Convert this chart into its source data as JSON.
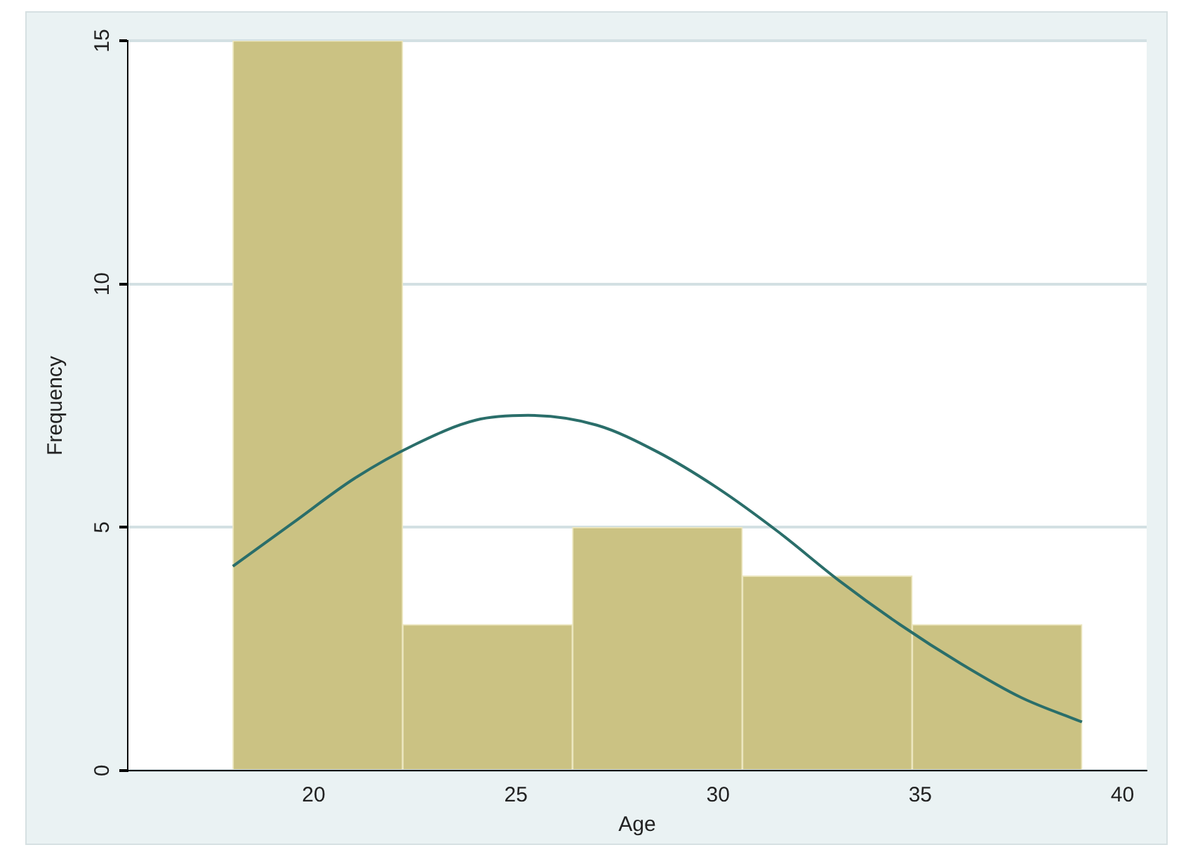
{
  "chart_data": {
    "type": "histogram",
    "xlabel": "Age",
    "ylabel": "Frequency",
    "bins": [
      18,
      22.2,
      26.4,
      30.6,
      34.8,
      39
    ],
    "values": [
      15,
      3,
      5,
      4,
      3
    ],
    "color": "#cbc283",
    "series": [
      {
        "type": "line",
        "color": "#2a6e6a",
        "x": [
          18,
          19.5,
          21,
          22.5,
          24,
          25.3,
          27,
          28.5,
          30,
          31.5,
          33,
          34.5,
          36,
          37.5,
          39
        ],
        "values": [
          4.2,
          5.1,
          6.0,
          6.7,
          7.2,
          7.3,
          7.1,
          6.55,
          5.8,
          4.9,
          3.9,
          3.0,
          2.2,
          1.5,
          1.0
        ]
      }
    ],
    "xlim": [
      15.4,
      40.6
    ],
    "ylim": [
      0,
      15
    ],
    "xticks": [
      20,
      25,
      30,
      35,
      40
    ],
    "yticks": [
      0,
      5,
      10,
      15
    ],
    "grid": "y",
    "legend": false
  }
}
